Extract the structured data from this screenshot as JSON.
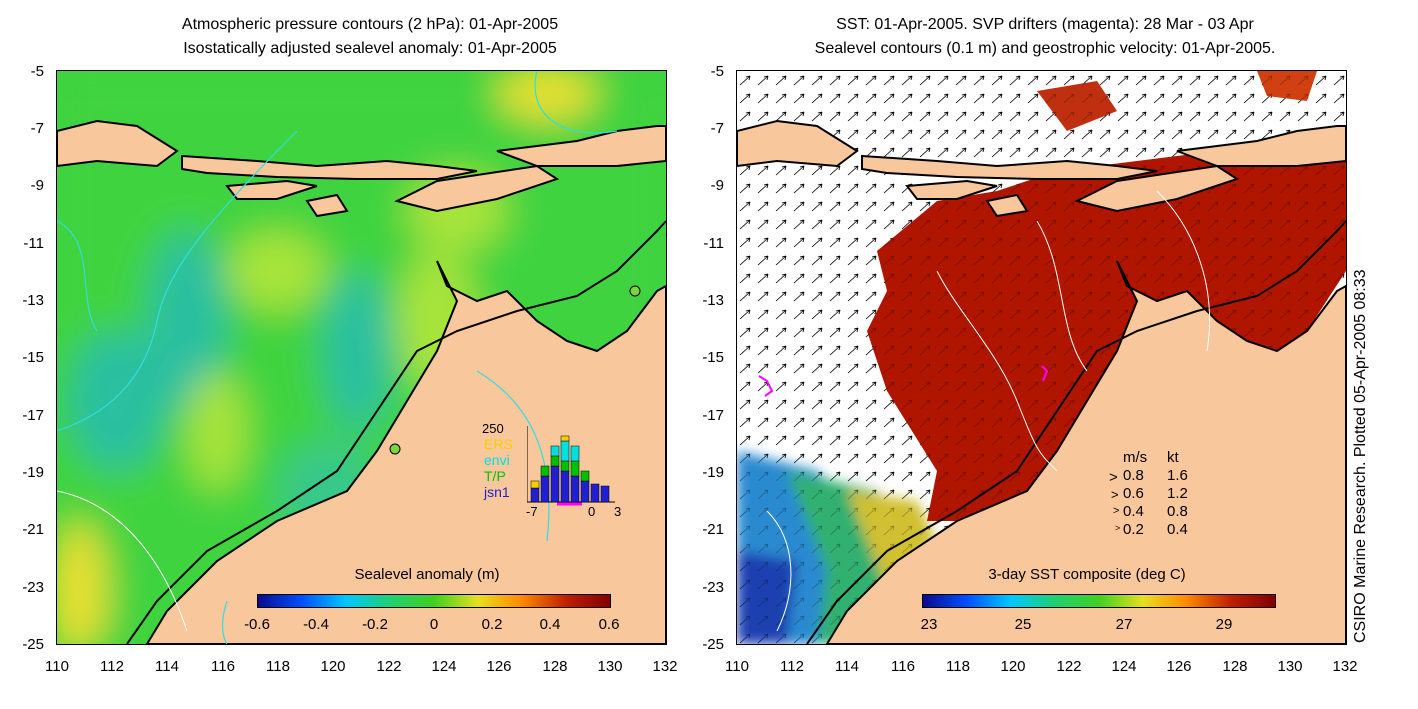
{
  "left_panel": {
    "title_line1": "Atmospheric pressure contours (2 hPa): 01-Apr-2005",
    "title_line2": "Isostatically adjusted sealevel anomaly: 01-Apr-2005",
    "colorbar_title": "Sealevel anomaly (m)",
    "colorbar_ticks": [
      "-0.6",
      "-0.4",
      "-0.2",
      "0",
      "0.2",
      "0.4",
      "0.6"
    ],
    "inset": {
      "ymax_label": "250",
      "legend": [
        "ERS",
        "envi",
        "T/P",
        "jsn1"
      ],
      "legend_colors": [
        "#f5d000",
        "#00e0e0",
        "#00c000",
        "#2020d0"
      ],
      "x_ticks": [
        "-7",
        "0",
        "3"
      ]
    }
  },
  "right_panel": {
    "title_line1": "SST: 01-Apr-2005. SVP drifters (magenta): 28 Mar - 03 Apr",
    "title_line2": "Sealevel contours (0.1 m) and geostrophic velocity: 01-Apr-2005.",
    "colorbar_title": "3-day SST composite (deg C)",
    "colorbar_ticks": [
      "23",
      "25",
      "27",
      "29"
    ],
    "speed_legend": {
      "header_ms": "m/s",
      "header_kt": "kt",
      "rows": [
        {
          "ms": "0.8",
          "kt": "1.6"
        },
        {
          "ms": "0.6",
          "kt": "1.2"
        },
        {
          "ms": "0.4",
          "kt": "0.8"
        },
        {
          "ms": "0.2",
          "kt": "0.4"
        }
      ]
    }
  },
  "y_ticks": [
    "-5",
    "-7",
    "-9",
    "-11",
    "-13",
    "-15",
    "-17",
    "-19",
    "-21",
    "-23",
    "-25"
  ],
  "x_ticks": [
    "110",
    "112",
    "114",
    "116",
    "118",
    "120",
    "122",
    "124",
    "126",
    "128",
    "130",
    "132"
  ],
  "credit": "CSIRO Marine Research. Plotted 05-Apr-2005 08:33",
  "colors": {
    "land": "#f9c79c",
    "ocean_green": "#3fd33f",
    "sst_hot": "#b01500"
  }
}
